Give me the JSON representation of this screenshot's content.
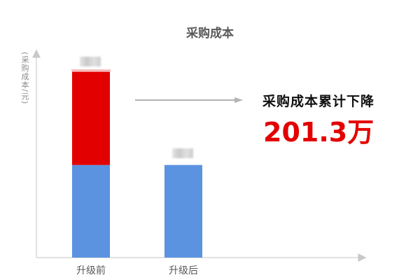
{
  "chart_data": {
    "type": "bar",
    "stacked": true,
    "title": "采购成本",
    "ylabel": "(采购成本/元)",
    "xlabel": "",
    "categories": [
      "升级前",
      "升级后"
    ],
    "series": [
      {
        "values": [
          199.8,
          199.8
        ],
        "color": "#5b93e0"
      },
      {
        "values": [
          201.3,
          0
        ],
        "color": "#e30000"
      }
    ],
    "ylim": [
      0,
      447
    ],
    "grid": false,
    "annotation": {
      "text": "采购成本累计下降",
      "value": "201.3万",
      "value_color": "#e30000"
    }
  }
}
